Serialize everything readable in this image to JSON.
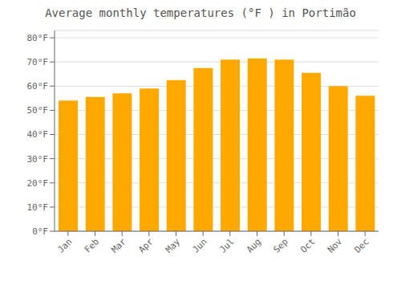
{
  "chart_data": {
    "type": "bar",
    "title": "Average monthly temperatures (°F ) in Portimão",
    "categories": [
      "Jan",
      "Feb",
      "Mar",
      "Apr",
      "May",
      "Jun",
      "Jul",
      "Aug",
      "Sep",
      "Oct",
      "Nov",
      "Dec"
    ],
    "values": [
      54,
      55.5,
      57,
      59,
      62.5,
      67.5,
      71,
      71.5,
      71,
      65.5,
      60,
      56
    ],
    "color": "#FFA800",
    "ylim": [
      0,
      83
    ],
    "yticks": [
      {
        "value": 0,
        "label": "0°F"
      },
      {
        "value": 10,
        "label": "10°F"
      },
      {
        "value": 20,
        "label": "20°F"
      },
      {
        "value": 30,
        "label": "30°F"
      },
      {
        "value": 40,
        "label": "40°F"
      },
      {
        "value": 50,
        "label": "50°F"
      },
      {
        "value": 60,
        "label": "60°F"
      },
      {
        "value": 70,
        "label": "70°F"
      },
      {
        "value": 80,
        "label": "80°F"
      }
    ],
    "grid": true
  }
}
